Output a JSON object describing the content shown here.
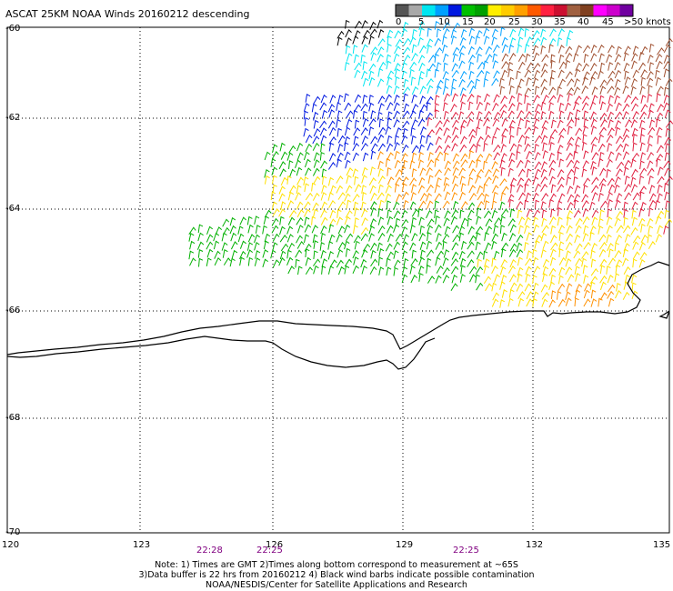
{
  "title": "ASCAT 25KM NOAA Winds 20160212 descending",
  "legend": {
    "labels": [
      "0",
      "5",
      "10",
      "15",
      "20",
      "25",
      "30",
      "35",
      "40",
      "45",
      ">50 knots"
    ],
    "colors": [
      "#555555",
      "#a8a8a8",
      "#00e6f0",
      "#00a0ff",
      "#0018e0",
      "#00c000",
      "#00a000",
      "#ffee00",
      "#ffcc00",
      "#ffa000",
      "#ff5a00",
      "#ff2040",
      "#cc1030",
      "#a06040",
      "#804020",
      "#ff00ff",
      "#cc00cc",
      "#7000a0"
    ]
  },
  "axes": {
    "lat_labels": [
      "-60",
      "-62",
      "-64",
      "-66",
      "-68",
      "-70"
    ],
    "lon_labels": [
      "120",
      "123",
      "126",
      "129",
      "132",
      "135"
    ]
  },
  "pass_times": [
    "22:28",
    "22:25",
    "22:25"
  ],
  "pass_time_color": "#800080",
  "notes": [
    "Note: 1) Times are GMT 2)Times along bottom correspond to measurement at ~65S",
    "3)Data buffer is 22 hrs from 20160212 4) Black wind barbs indicate possible contamination",
    "NOAA/NESDIS/Center for Satellite Applications and Research"
  ],
  "wind_palette": {
    "black": "#000000",
    "cyan": "#00e6f0",
    "light_blue": "#00a0ff",
    "blue": "#0018e0",
    "green": "#00b000",
    "yellow": "#ffe000",
    "orange": "#ff9000",
    "red": "#e02040",
    "brown": "#a05030"
  }
}
